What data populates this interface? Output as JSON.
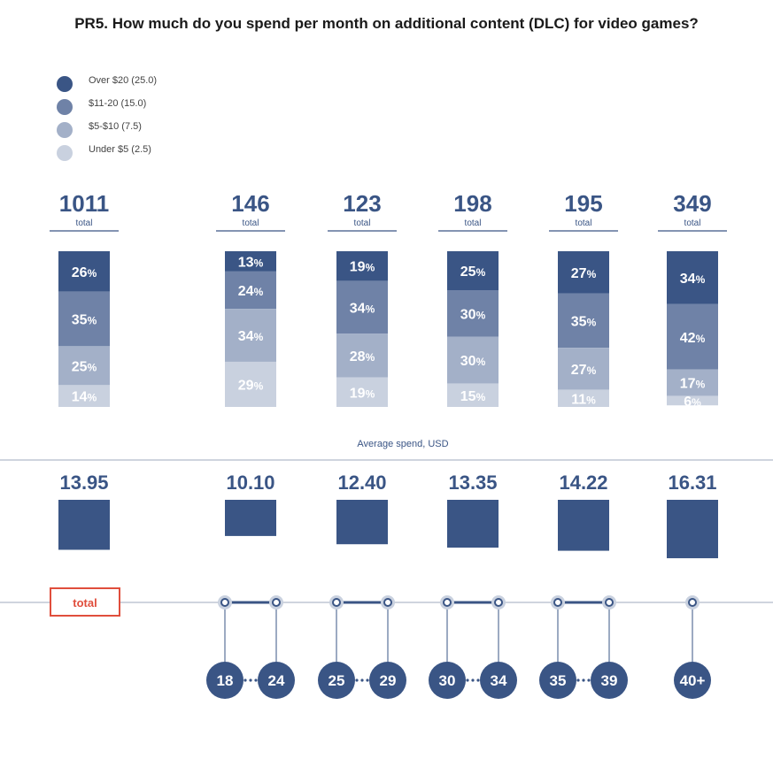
{
  "title": "PR5. How much do you spend per month on additional content (DLC) for video games?",
  "colors": {
    "over20": "#3a5585",
    "c11_20": "#6f82a7",
    "c5_10": "#a3b0c8",
    "under5": "#c9d1df",
    "accent": "#e04e3c",
    "axis": "#cfd4de"
  },
  "chart_data": {
    "type": "bar",
    "title": "PR5. How much do you spend per month on additional content (DLC) for video games?",
    "legend": [
      {
        "name": "Over $20 (25.0)",
        "color": "#3a5585"
      },
      {
        "name": "$11-20 (15.0)",
        "color": "#6f82a7"
      },
      {
        "name": "$5-$10 (7.5)",
        "color": "#a3b0c8"
      },
      {
        "name": "Under $5 (2.5)",
        "color": "#c9d1df"
      }
    ],
    "total_word": "total",
    "pct_sign": "%",
    "groups": [
      {
        "key": "total",
        "label": "total",
        "n": "1011",
        "avg": 13.95,
        "avg_label": "13.95",
        "ages": [],
        "shares": [
          26,
          35,
          25,
          14
        ]
      },
      {
        "key": "18-24",
        "n": "146",
        "avg": 10.1,
        "avg_label": "10.10",
        "ages": [
          "18",
          "24"
        ],
        "shares": [
          13,
          24,
          34,
          29
        ]
      },
      {
        "key": "25-29",
        "n": "123",
        "avg": 12.4,
        "avg_label": "12.40",
        "ages": [
          "25",
          "29"
        ],
        "shares": [
          19,
          34,
          28,
          19
        ]
      },
      {
        "key": "30-34",
        "n": "198",
        "avg": 13.35,
        "avg_label": "13.35",
        "ages": [
          "30",
          "34"
        ],
        "shares": [
          25,
          30,
          30,
          15
        ]
      },
      {
        "key": "35-39",
        "n": "195",
        "avg": 14.22,
        "avg_label": "14.22",
        "ages": [
          "35",
          "39"
        ],
        "shares": [
          27,
          35,
          27,
          11
        ]
      },
      {
        "key": "40+",
        "n": "349",
        "avg": 16.31,
        "avg_label": "16.31",
        "ages": [
          "40+"
        ],
        "shares": [
          34,
          42,
          17,
          6
        ]
      }
    ],
    "avg_title": "Average spend, USD"
  }
}
